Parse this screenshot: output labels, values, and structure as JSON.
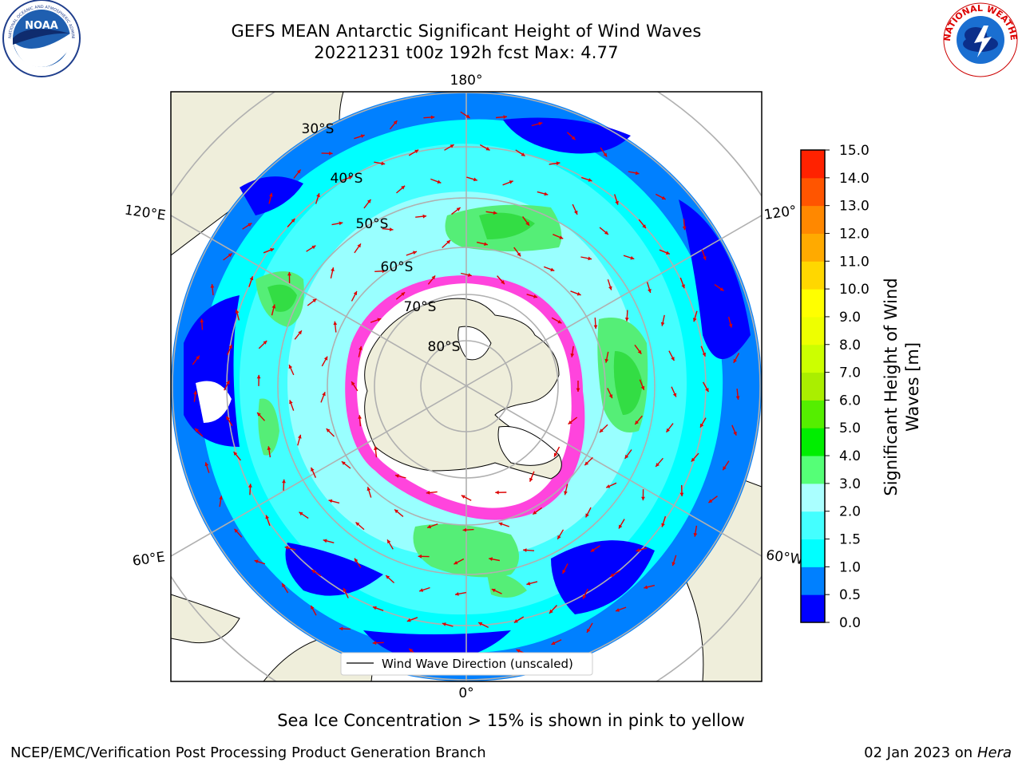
{
  "title_line1": "GEFS MEAN Antarctic Significant Height of Wind Waves",
  "title_line2": "20221231 t00z 192h fcst   Max: 4.77",
  "logos": {
    "left": {
      "name": "noaa-logo",
      "text": "NOAA",
      "ring_text": "NATIONAL OCEANIC AND ATMOSPHERIC ADMINISTRATION · U.S. DEPARTMENT OF COMMERCE"
    },
    "right": {
      "name": "nws-logo",
      "ring_text": "NATIONAL WEATHER SERVICE"
    }
  },
  "map": {
    "projection": "south-polar-stereographic",
    "longitude_labels": [
      "180°",
      "120°E",
      "120°",
      "60°E",
      "60°W",
      "0°"
    ],
    "latitude_labels": [
      "30°S",
      "40°S",
      "50°S",
      "60°S",
      "70°S",
      "80°S"
    ],
    "legend_label": "Wind Wave Direction (unscaled)",
    "colors": {
      "land": "#efeedb",
      "ocean_0_0.5": "#0000ff",
      "ocean_0.5_1": "#0080ff",
      "ocean_1_1.5": "#00ffff",
      "ocean_1.5_2": "#40ffff",
      "ocean_2_2.5": "#80ffff",
      "ocean_3_3.5": "#55ff77",
      "ocean_3.5_4": "#80ee80",
      "sea_ice": "#ff44dd",
      "arrows": "#dd0000"
    }
  },
  "colorbar": {
    "label_line1": "Significant Height of Wind",
    "label_line2": "Waves [m]",
    "ticks": [
      "0.0",
      "0.5",
      "1.0",
      "1.5",
      "2.0",
      "3.0",
      "4.0",
      "5.0",
      "6.0",
      "7.0",
      "8.0",
      "9.0",
      "10.0",
      "11.0",
      "12.0",
      "13.0",
      "14.0",
      "15.0"
    ],
    "colors": [
      "#0000ff",
      "#0080ff",
      "#00ffff",
      "#44ffff",
      "#aaffff",
      "#55ff77",
      "#00ee00",
      "#55ee00",
      "#aaee00",
      "#ccff00",
      "#eeff00",
      "#ffff00",
      "#ffd700",
      "#ffaa00",
      "#ff8800",
      "#ff5500",
      "#ff2200"
    ]
  },
  "note": "Sea Ice Concentration > 15% is shown in pink to yellow",
  "footer_left": "NCEP/EMC/Verification Post Processing Product Generation Branch",
  "footer_right_date": "02 Jan 2023 on ",
  "footer_right_machine": "Hera"
}
